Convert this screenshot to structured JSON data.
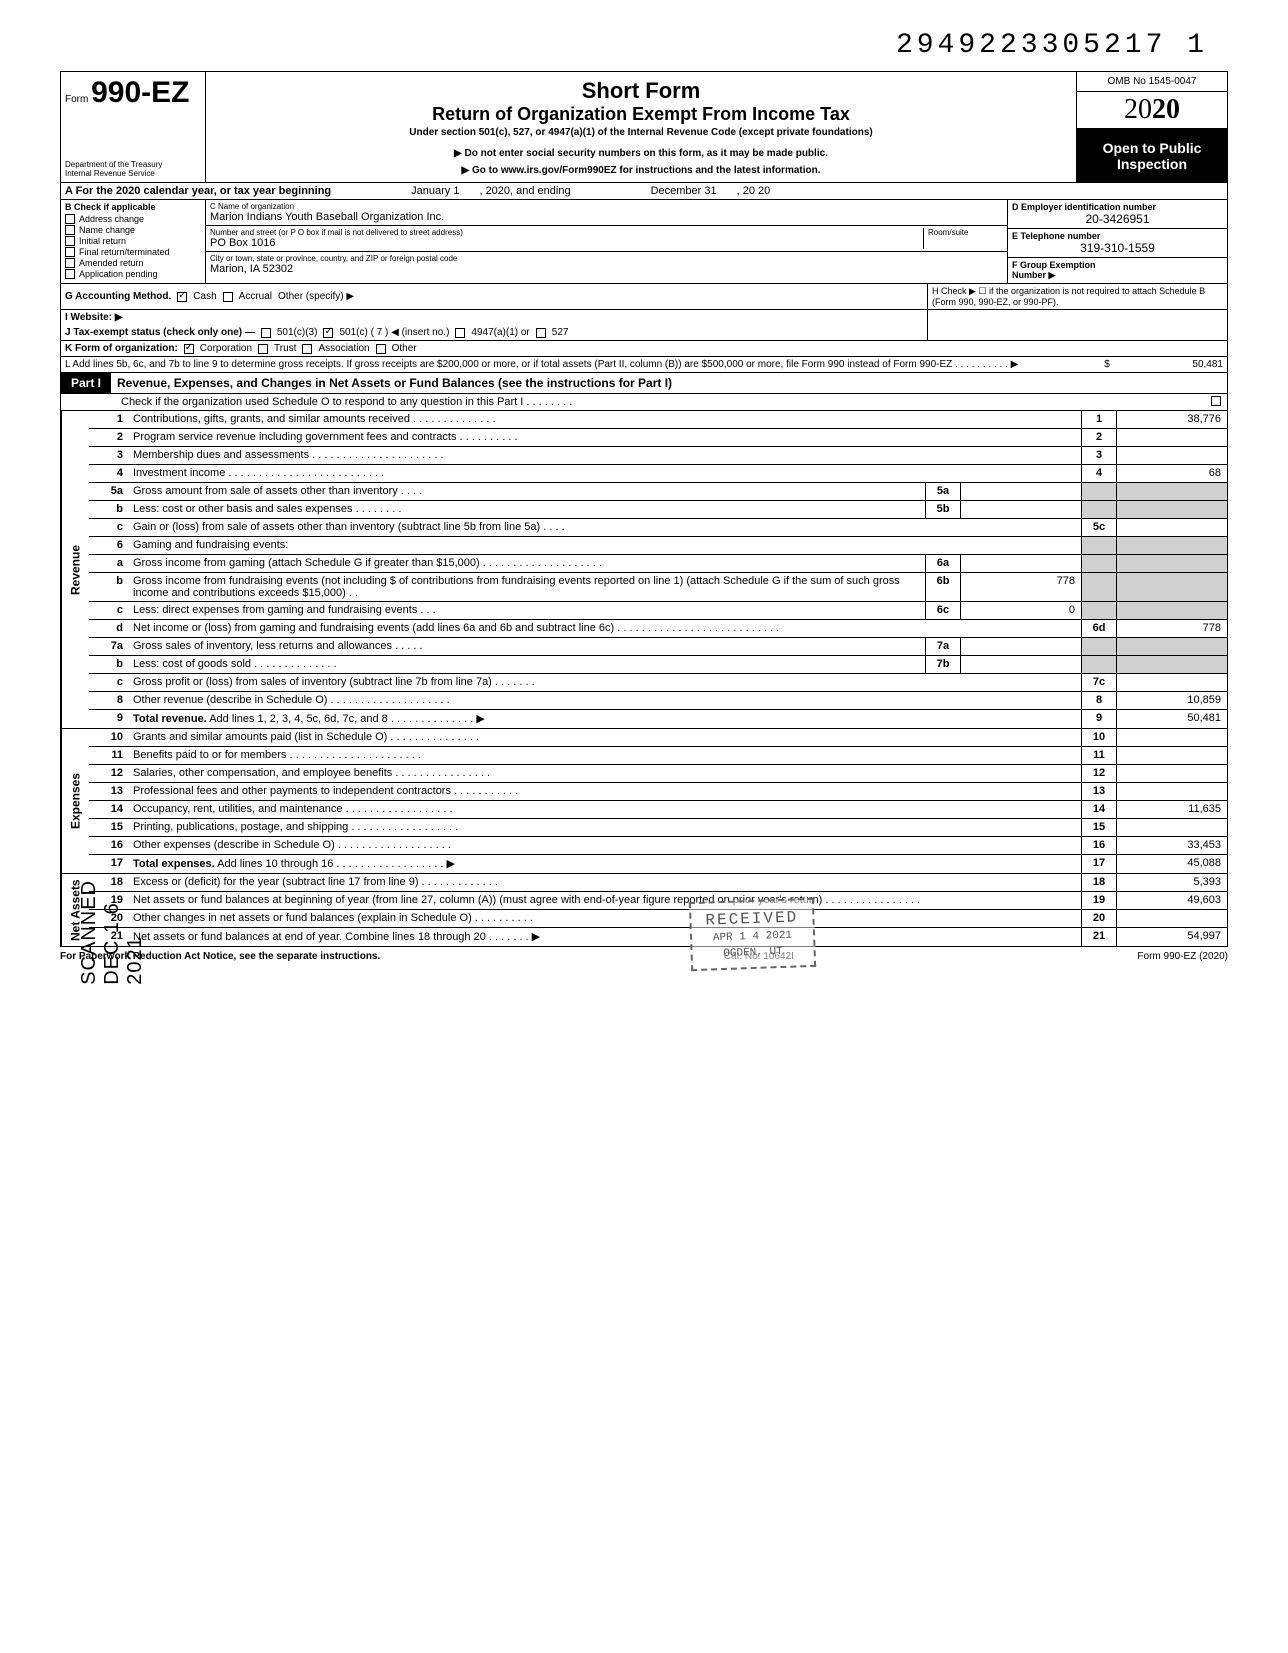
{
  "top_id": "2949223305217 1",
  "header": {
    "form_prefix": "Form",
    "form_number": "990-EZ",
    "dept": "Department of the Treasury\nInternal Revenue Service",
    "title1": "Short Form",
    "title2": "Return of Organization Exempt From Income Tax",
    "subtitle": "Under section 501(c), 527, or 4947(a)(1) of the Internal Revenue Code (except private foundations)",
    "note1": "▶ Do not enter social security numbers on this form, as it may be made public.",
    "note2": "▶ Go to www.irs.gov/Form990EZ for instructions and the latest information.",
    "omb": "OMB No 1545-0047",
    "year_light": "20",
    "year_bold": "20",
    "inspect1": "Open to Public",
    "inspect2": "Inspection"
  },
  "line_a": {
    "text": "A  For the 2020 calendar year, or tax year beginning",
    "begin": "January 1",
    "mid": ", 2020, and ending",
    "end": "December 31",
    "yr_suffix": ", 20   20"
  },
  "block_b": {
    "header": "B  Check if applicable",
    "opts": [
      "Address change",
      "Name change",
      "Initial return",
      "Final return/terminated",
      "Amended return",
      "Application pending"
    ],
    "c_label": "C  Name of organization",
    "c_value": "Marion Indians Youth Baseball Organization Inc.",
    "addr_label": "Number and street (or P O  box if mail is not delivered to street address)",
    "room_label": "Room/suite",
    "addr_value": "PO Box 1016",
    "city_label": "City or town, state or province, country, and ZIP or foreign postal code",
    "city_value": "Marion, IA 52302",
    "d_label": "D Employer identification number",
    "d_value": "20-3426951",
    "e_label": "E  Telephone number",
    "e_value": "319-310-1559",
    "f_label": "F  Group Exemption\n    Number ▶"
  },
  "line_g": {
    "label": "G  Accounting Method.",
    "cash": "Cash",
    "accrual": "Accrual",
    "other": "Other (specify) ▶",
    "h_text": "H  Check ▶ ☐ if the organization is not required to attach Schedule B (Form 990, 990-EZ, or 990-PF)."
  },
  "line_i": {
    "label": "I   Website: ▶"
  },
  "line_j": {
    "label": "J  Tax-exempt status (check only one) —",
    "o1": "501(c)(3)",
    "o2": "501(c) (  7  ) ◀ (insert no.)",
    "o3": "4947(a)(1) or",
    "o4": "527"
  },
  "line_k": {
    "label": "K  Form of organization:",
    "o1": "Corporation",
    "o2": "Trust",
    "o3": "Association",
    "o4": "Other"
  },
  "line_l": {
    "text": "L  Add lines 5b, 6c, and 7b to line 9 to determine gross receipts. If gross receipts are $200,000 or more, or if total assets (Part II, column (B)) are $500,000 or more, file Form 990 instead of Form 990-EZ .   .   .   .   .   .   .   .   .   .   ▶",
    "amount": "50,481"
  },
  "part1": {
    "tag": "Part I",
    "title": "Revenue, Expenses, and Changes in Net Assets or Fund Balances (see the instructions for Part I)",
    "sub": "Check if the organization used Schedule O to respond to any question in this Part I  .   .   .   .   .   .   .   ."
  },
  "sections": {
    "revenue": "Revenue",
    "expenses": "Expenses",
    "netassets": "Net Assets"
  },
  "rows": {
    "r1": {
      "n": "1",
      "d": "Contributions, gifts, grants, and similar amounts received .   .   .   .   .   .   .   .   .   .   .   .   .   .",
      "rn": "1",
      "rv": "38,776"
    },
    "r2": {
      "n": "2",
      "d": "Program service revenue including government fees and contracts    .   .   .   .   .   .   .   .   .   .",
      "rn": "2",
      "rv": ""
    },
    "r3": {
      "n": "3",
      "d": "Membership dues and assessments .   .   .   .   .   .   .   .   .   .   .   .   .   .   .   .   .   .   .   .   .   .",
      "rn": "3",
      "rv": ""
    },
    "r4": {
      "n": "4",
      "d": "Investment income     .   .   .   .   .   .   .   .   .   .   .   .   .   .   .   .   .   .   .   .   .   .   .   .   .   .",
      "rn": "4",
      "rv": "68"
    },
    "r5a": {
      "n": "5a",
      "d": "Gross amount from sale of assets other than inventory    .   .   .   .",
      "mn": "5a",
      "mv": ""
    },
    "r5b": {
      "n": "b",
      "d": "Less: cost or other basis and sales expenses .   .   .   .   .   .   .   .",
      "mn": "5b",
      "mv": ""
    },
    "r5c": {
      "n": "c",
      "d": "Gain or (loss) from sale of assets other than inventory (subtract line 5b from line 5a)  .   .   .   .",
      "rn": "5c",
      "rv": ""
    },
    "r6": {
      "n": "6",
      "d": "Gaming and fundraising events:"
    },
    "r6a": {
      "n": "a",
      "d": "Gross income from gaming (attach Schedule G if greater than $15,000) .   .   .   .   .   .   .   .   .   .   .   .   .   .   .   .   .   .   .   .",
      "mn": "6a",
      "mv": ""
    },
    "r6b": {
      "n": "b",
      "d": "Gross income from fundraising events (not including  $                      of contributions from fundraising events reported on line 1) (attach Schedule G if the sum of such gross income and contributions exceeds $15,000) .   .",
      "mn": "6b",
      "mv": "778"
    },
    "r6c": {
      "n": "c",
      "d": "Less: direct expenses from gaming and fundraising events    .   .   .",
      "mn": "6c",
      "mv": "0"
    },
    "r6d": {
      "n": "d",
      "d": "Net income or (loss) from gaming and fundraising events (add lines 6a and 6b and subtract line 6c)    .   .   .   .   .   .   .   .   .   .   .   .   .   .   .   .   .   .   .   .   .   .   .   .   .   .   .",
      "rn": "6d",
      "rv": "778"
    },
    "r7a": {
      "n": "7a",
      "d": "Gross sales of inventory, less returns and allowances   .   .   .   .   .",
      "mn": "7a",
      "mv": ""
    },
    "r7b": {
      "n": "b",
      "d": "Less: cost of goods sold     .   .   .   .   .   .   .   .   .   .   .   .   .   .",
      "mn": "7b",
      "mv": ""
    },
    "r7c": {
      "n": "c",
      "d": "Gross profit or (loss) from sales of inventory (subtract line 7b from line 7a)   .   .   .   .   .   .   .",
      "rn": "7c",
      "rv": ""
    },
    "r8": {
      "n": "8",
      "d": "Other revenue (describe in Schedule O) .   .   .   .   .   .   .   .   .   .   .   .   .   .   .   .   .   .   .   .",
      "rn": "8",
      "rv": "10,859"
    },
    "r9": {
      "n": "9",
      "d": "Total revenue. Add lines 1, 2, 3, 4, 5c, 6d, 7c, and 8    .   .   .   .   .   .   .   .   .   .   .   .   .   . ▶",
      "rn": "9",
      "rv": "50,481",
      "bold": true
    },
    "r10": {
      "n": "10",
      "d": "Grants and similar amounts paid (list in Schedule O)    .   .   .   .   .   .   .   .   .   .   .   .   .   .   .",
      "rn": "10",
      "rv": ""
    },
    "r11": {
      "n": "11",
      "d": "Benefits paid to or for members   .   .   .   .   .   .   .   .   .   .   .   .   .   .   .   .   .   .   .   .   .   .",
      "rn": "11",
      "rv": ""
    },
    "r12": {
      "n": "12",
      "d": "Salaries, other compensation, and employee benefits .   .   .   .   .   .   .   .   .   .   .   .   .   .   .   .",
      "rn": "12",
      "rv": ""
    },
    "r13": {
      "n": "13",
      "d": "Professional fees and other payments to independent contractors   .   .   .   .   .   .   .   .   .   .   .",
      "rn": "13",
      "rv": ""
    },
    "r14": {
      "n": "14",
      "d": "Occupancy, rent, utilities, and maintenance    .   .   .   .   .   .   .   .   .   .   .   .   .   .   .   .   .   .",
      "rn": "14",
      "rv": "11,635"
    },
    "r15": {
      "n": "15",
      "d": "Printing, publications, postage, and shipping .   .   .   .   .   .   .   .   .   .   .   .   .   .   .   .   .   .",
      "rn": "15",
      "rv": ""
    },
    "r16": {
      "n": "16",
      "d": "Other expenses (describe in Schedule O)   .   .   .   .   .   .   .   .   .   .   .   .   .   .   .   .   .   .   .",
      "rn": "16",
      "rv": "33,453"
    },
    "r17": {
      "n": "17",
      "d": "Total expenses. Add lines 10 through 16   .   .   .   .   .   .   .   .   .   .   .   .   .   .   .   .   .   . ▶",
      "rn": "17",
      "rv": "45,088",
      "bold": true
    },
    "r18": {
      "n": "18",
      "d": "Excess or (deficit) for the year (subtract line 17 from line 9)    .   .   .   .   .   .   .   .   .   .   .   .   .",
      "rn": "18",
      "rv": "5,393"
    },
    "r19": {
      "n": "19",
      "d": "Net assets or fund balances at beginning of year (from line 27, column (A)) (must agree with end-of-year figure reported on prior year's return)    .   .   .   .   .   .   .   .   .   .   .   .   .   .   .   .",
      "rn": "19",
      "rv": "49,603"
    },
    "r20": {
      "n": "20",
      "d": "Other changes in net assets or fund balances (explain in Schedule O) .   .   .   .   .   .   .   .   .   .",
      "rn": "20",
      "rv": ""
    },
    "r21": {
      "n": "21",
      "d": "Net assets or fund balances at end of year. Combine lines 18 through 20    .   .   .   .   .   .   . ▶",
      "rn": "21",
      "rv": "54,997"
    }
  },
  "footer": {
    "left": "For Paperwork Reduction Act Notice, see the separate instructions.",
    "mid": "Cat. No. 10642I",
    "right": "Form 990-EZ (2020)"
  },
  "left_rail": "SCANNED   DEC 1 6 2021",
  "stamp": {
    "l1": "RECEIVED",
    "l2": "APR 1 4 2021",
    "l3": "OGDEN, UT"
  }
}
